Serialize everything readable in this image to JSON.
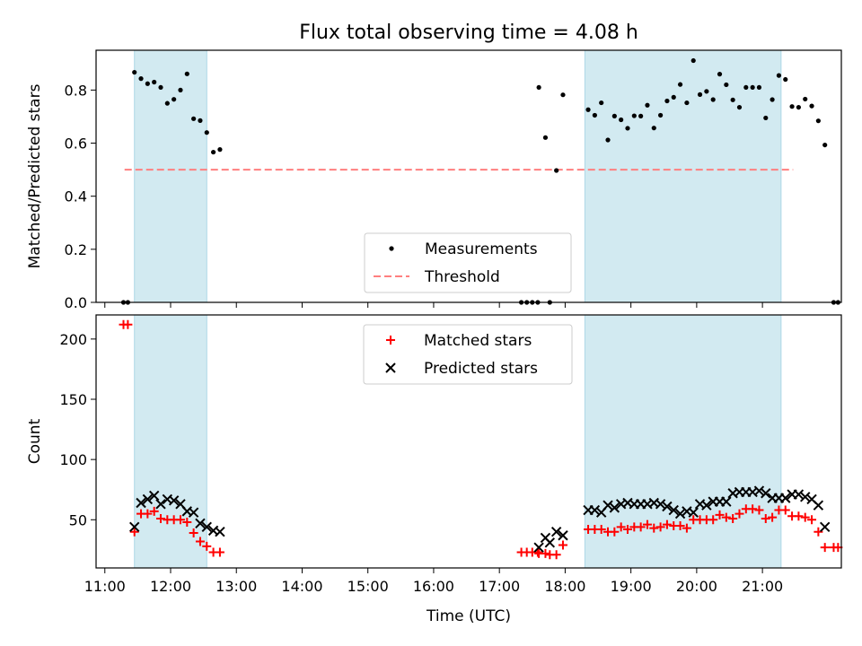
{
  "figure": {
    "title": "Flux total observing time = 4.08 h",
    "xlabel": "Time (UTC)"
  },
  "chart_data": [
    {
      "type": "scatter",
      "panel": "top",
      "ylabel": "Matched/Predicted stars",
      "xlim": [
        "10:52",
        "22:12"
      ],
      "ylim": [
        0,
        0.95
      ],
      "yticks": [
        "0.0",
        "0.2",
        "0.4",
        "0.6",
        "0.8"
      ],
      "ytick_values": [
        0,
        0.2,
        0.4,
        0.6,
        0.8
      ],
      "shaded_intervals": [
        [
          "11:27",
          "12:33"
        ],
        [
          "18:18",
          "21:17"
        ]
      ],
      "shaded_color": "#add8e6",
      "threshold": {
        "name": "Threshold",
        "value": 0.5,
        "x_range": [
          "11:18",
          "21:28"
        ],
        "color": "#ff7f7f",
        "style": "dashed"
      },
      "legend": {
        "placement": "lower center",
        "entries": [
          "Measurements",
          "Threshold"
        ]
      },
      "series": [
        {
          "name": "Measurements",
          "marker": "dot",
          "color": "#000000",
          "points": [
            [
              "11:17",
              0
            ],
            [
              "11:21",
              0
            ],
            [
              "11:27",
              0.867
            ],
            [
              "11:33",
              0.843
            ],
            [
              "11:39",
              0.824
            ],
            [
              "11:45",
              0.83
            ],
            [
              "11:51",
              0.81
            ],
            [
              "11:57",
              0.75
            ],
            [
              "12:03",
              0.765
            ],
            [
              "12:09",
              0.8
            ],
            [
              "12:15",
              0.861
            ],
            [
              "12:21",
              0.692
            ],
            [
              "12:27",
              0.685
            ],
            [
              "12:33",
              0.64
            ],
            [
              "12:39",
              0.566
            ],
            [
              "12:45",
              0.576
            ],
            [
              "17:20",
              0
            ],
            [
              "17:25",
              0
            ],
            [
              "17:30",
              0
            ],
            [
              "17:35",
              0
            ],
            [
              "17:36",
              0.81
            ],
            [
              "17:42",
              0.621
            ],
            [
              "17:46",
              0
            ],
            [
              "17:52",
              0.497
            ],
            [
              "17:58",
              0.782
            ],
            [
              "18:21",
              0.726
            ],
            [
              "18:27",
              0.705
            ],
            [
              "18:33",
              0.752
            ],
            [
              "18:39",
              0.612
            ],
            [
              "18:45",
              0.702
            ],
            [
              "18:51",
              0.688
            ],
            [
              "18:57",
              0.656
            ],
            [
              "19:03",
              0.703
            ],
            [
              "19:09",
              0.702
            ],
            [
              "19:15",
              0.743
            ],
            [
              "19:21",
              0.657
            ],
            [
              "19:27",
              0.705
            ],
            [
              "19:33",
              0.759
            ],
            [
              "19:39",
              0.773
            ],
            [
              "19:45",
              0.821
            ],
            [
              "19:51",
              0.752
            ],
            [
              "19:57",
              0.911
            ],
            [
              "20:03",
              0.783
            ],
            [
              "20:09",
              0.795
            ],
            [
              "20:15",
              0.764
            ],
            [
              "20:21",
              0.86
            ],
            [
              "20:27",
              0.82
            ],
            [
              "20:33",
              0.763
            ],
            [
              "20:39",
              0.735
            ],
            [
              "20:45",
              0.81
            ],
            [
              "20:51",
              0.81
            ],
            [
              "20:57",
              0.81
            ],
            [
              "21:03",
              0.695
            ],
            [
              "21:09",
              0.764
            ],
            [
              "21:15",
              0.855
            ],
            [
              "21:21",
              0.84
            ],
            [
              "21:27",
              0.738
            ],
            [
              "21:33",
              0.735
            ],
            [
              "21:39",
              0.766
            ],
            [
              "21:45",
              0.74
            ],
            [
              "21:51",
              0.684
            ],
            [
              "21:57",
              0.593
            ],
            [
              "22:05",
              0
            ],
            [
              "22:09",
              0
            ]
          ]
        }
      ]
    },
    {
      "type": "scatter",
      "panel": "bottom",
      "ylabel": "Count",
      "xlim": [
        "10:52",
        "22:12"
      ],
      "ylim": [
        10,
        220
      ],
      "yticks": [
        "50",
        "100",
        "150",
        "200"
      ],
      "ytick_values": [
        50,
        100,
        150,
        200
      ],
      "xticks": [
        "11:00",
        "12:00",
        "13:00",
        "14:00",
        "15:00",
        "16:00",
        "17:00",
        "18:00",
        "19:00",
        "20:00",
        "21:00"
      ],
      "shaded_intervals": [
        [
          "11:27",
          "12:33"
        ],
        [
          "18:18",
          "21:17"
        ]
      ],
      "shaded_color": "#add8e6",
      "legend": {
        "placement": "upper center",
        "entries": [
          "Matched stars",
          "Predicted stars"
        ]
      },
      "series": [
        {
          "name": "Matched stars",
          "marker": "plus",
          "color": "#ff0000",
          "points": [
            [
              "11:17",
              212
            ],
            [
              "11:21",
              212
            ],
            [
              "11:27",
              40
            ],
            [
              "11:33",
              55
            ],
            [
              "11:39",
              55
            ],
            [
              "11:45",
              57
            ],
            [
              "11:51",
              51
            ],
            [
              "11:57",
              50
            ],
            [
              "12:03",
              50
            ],
            [
              "12:09",
              50
            ],
            [
              "12:15",
              48
            ],
            [
              "12:21",
              39
            ],
            [
              "12:27",
              32
            ],
            [
              "12:33",
              28
            ],
            [
              "12:39",
              23
            ],
            [
              "12:45",
              23
            ],
            [
              "17:20",
              23
            ],
            [
              "17:25",
              23
            ],
            [
              "17:30",
              23
            ],
            [
              "17:35",
              23
            ],
            [
              "17:36",
              22
            ],
            [
              "17:42",
              22
            ],
            [
              "17:46",
              21
            ],
            [
              "17:52",
              21
            ],
            [
              "17:58",
              29
            ],
            [
              "18:21",
              42
            ],
            [
              "18:27",
              42
            ],
            [
              "18:33",
              42
            ],
            [
              "18:39",
              40
            ],
            [
              "18:45",
              40
            ],
            [
              "18:51",
              44
            ],
            [
              "18:57",
              42
            ],
            [
              "19:03",
              44
            ],
            [
              "19:09",
              44
            ],
            [
              "19:15",
              46
            ],
            [
              "19:21",
              43
            ],
            [
              "19:27",
              44
            ],
            [
              "19:33",
              46
            ],
            [
              "19:39",
              45
            ],
            [
              "19:45",
              45
            ],
            [
              "19:51",
              43
            ],
            [
              "19:57",
              50
            ],
            [
              "20:03",
              50
            ],
            [
              "20:09",
              50
            ],
            [
              "20:15",
              50
            ],
            [
              "20:21",
              54
            ],
            [
              "20:27",
              52
            ],
            [
              "20:33",
              51
            ],
            [
              "20:39",
              55
            ],
            [
              "20:45",
              59
            ],
            [
              "20:51",
              59
            ],
            [
              "20:57",
              58
            ],
            [
              "21:03",
              51
            ],
            [
              "21:09",
              52
            ],
            [
              "21:15",
              58
            ],
            [
              "21:21",
              58
            ],
            [
              "21:27",
              53
            ],
            [
              "21:33",
              53
            ],
            [
              "21:39",
              52
            ],
            [
              "21:45",
              50
            ],
            [
              "21:51",
              40
            ],
            [
              "21:57",
              27
            ],
            [
              "22:05",
              27
            ],
            [
              "22:09",
              27
            ]
          ]
        },
        {
          "name": "Predicted stars",
          "marker": "x",
          "color": "#000000",
          "points": [
            [
              "11:27",
              44
            ],
            [
              "11:33",
              64
            ],
            [
              "11:39",
              67
            ],
            [
              "11:45",
              70
            ],
            [
              "11:51",
              63
            ],
            [
              "11:57",
              67
            ],
            [
              "12:03",
              66
            ],
            [
              "12:09",
              63
            ],
            [
              "12:15",
              57
            ],
            [
              "12:21",
              56
            ],
            [
              "12:27",
              47
            ],
            [
              "12:33",
              44
            ],
            [
              "12:39",
              41
            ],
            [
              "12:45",
              40
            ],
            [
              "17:36",
              27
            ],
            [
              "17:42",
              35
            ],
            [
              "17:46",
              31
            ],
            [
              "17:52",
              40
            ],
            [
              "17:58",
              37
            ],
            [
              "18:21",
              58
            ],
            [
              "18:27",
              58
            ],
            [
              "18:33",
              56
            ],
            [
              "18:39",
              62
            ],
            [
              "18:45",
              60
            ],
            [
              "18:51",
              63
            ],
            [
              "18:57",
              64
            ],
            [
              "19:03",
              63
            ],
            [
              "19:09",
              63
            ],
            [
              "19:15",
              63
            ],
            [
              "19:21",
              64
            ],
            [
              "19:27",
              63
            ],
            [
              "19:33",
              61
            ],
            [
              "19:39",
              58
            ],
            [
              "19:45",
              55
            ],
            [
              "19:51",
              57
            ],
            [
              "19:57",
              56
            ],
            [
              "20:03",
              63
            ],
            [
              "20:09",
              62
            ],
            [
              "20:15",
              65
            ],
            [
              "20:21",
              65
            ],
            [
              "20:27",
              65
            ],
            [
              "20:33",
              72
            ],
            [
              "20:39",
              73
            ],
            [
              "20:45",
              73
            ],
            [
              "20:51",
              73
            ],
            [
              "20:57",
              74
            ],
            [
              "21:03",
              72
            ],
            [
              "21:09",
              68
            ],
            [
              "21:15",
              68
            ],
            [
              "21:21",
              68
            ],
            [
              "21:27",
              71
            ],
            [
              "21:33",
              71
            ],
            [
              "21:39",
              69
            ],
            [
              "21:45",
              67
            ],
            [
              "21:51",
              62
            ],
            [
              "21:57",
              44
            ]
          ]
        }
      ]
    }
  ]
}
